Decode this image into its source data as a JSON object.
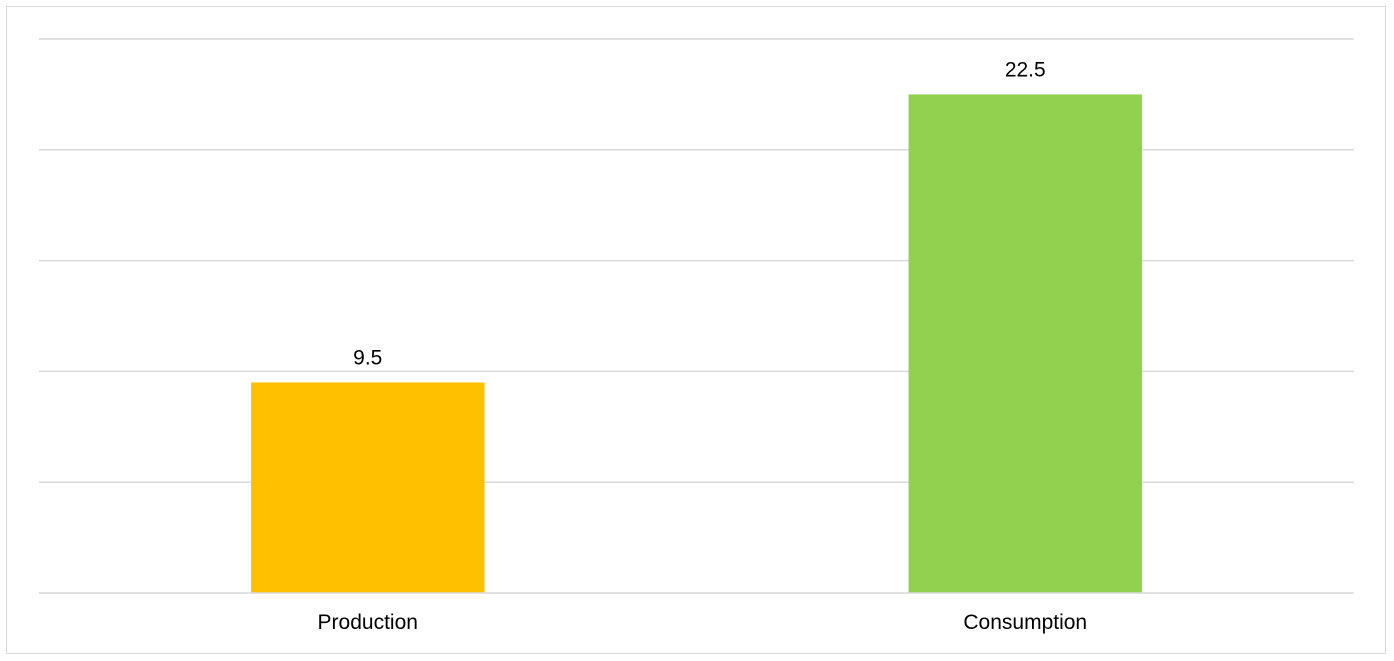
{
  "chart_data": {
    "type": "bar",
    "title": "",
    "xlabel": "",
    "ylabel": "",
    "categories": [
      "Production",
      "Consumption"
    ],
    "values": [
      9.5,
      22.5
    ],
    "data_labels": [
      "9.5",
      "22.5"
    ],
    "colors": [
      "#FFC000",
      "#92D050"
    ],
    "ylim": [
      0,
      25
    ],
    "grid_step": 5,
    "grid": true,
    "y_axis_labels_visible": false,
    "legend": "none"
  }
}
